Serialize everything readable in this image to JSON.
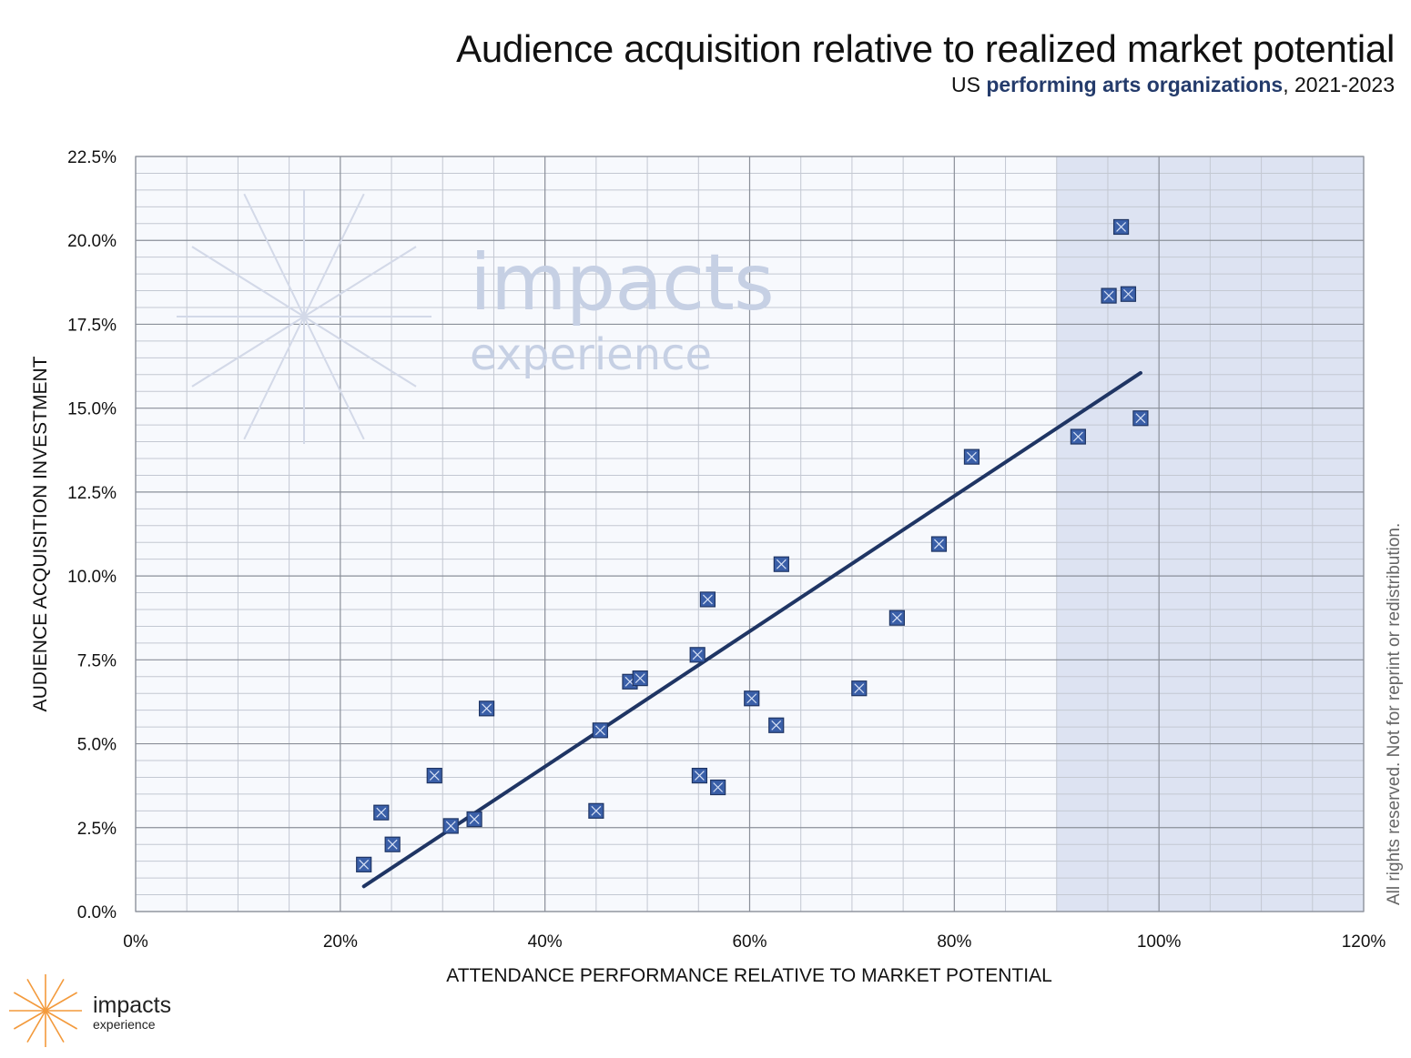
{
  "header": {
    "title": "Audience acquisition relative to realized market potential",
    "subtitle_prefix": "US ",
    "subtitle_highlight": "performing arts organizations",
    "subtitle_suffix": ", 2021-2023"
  },
  "side_note": "All rights reserved. Not for reprint or redistribution.",
  "watermark": {
    "line1": "impacts",
    "line2": "experience"
  },
  "logo": {
    "line1": "impacts",
    "line2": "experience"
  },
  "colors": {
    "marker_fill": "#3a5fa8",
    "trend_line": "#1f3564",
    "highlight_region": "#dde3f2",
    "plot_background": "#f7f9fd",
    "watermark": "#c6d0e4",
    "logo_star": "#f39a3c"
  },
  "chart_data": {
    "type": "scatter",
    "title": "Audience acquisition relative to realized market potential",
    "subtitle": "US performing arts organizations, 2021-2023",
    "xlabel": "ATTENDANCE PERFORMANCE RELATIVE TO MARKET POTENTIAL",
    "ylabel": "AUDIENCE ACQUISITION INVESTMENT",
    "xlim": [
      0,
      120
    ],
    "ylim": [
      0,
      22.5
    ],
    "x_ticks": [
      "0%",
      "20%",
      "40%",
      "60%",
      "80%",
      "100%",
      "120%"
    ],
    "x_tick_values": [
      0,
      20,
      40,
      60,
      80,
      100,
      120
    ],
    "y_ticks": [
      "0.0%",
      "2.5%",
      "5.0%",
      "7.5%",
      "10.0%",
      "12.5%",
      "15.0%",
      "17.5%",
      "20.0%",
      "22.5%"
    ],
    "y_tick_values": [
      0,
      2.5,
      5,
      7.5,
      10,
      12.5,
      15,
      17.5,
      20,
      22.5
    ],
    "grid": true,
    "highlight_region_x": [
      90,
      120
    ],
    "points": [
      {
        "x": 22.3,
        "y": 1.4
      },
      {
        "x": 24.0,
        "y": 2.95
      },
      {
        "x": 25.1,
        "y": 2.0
      },
      {
        "x": 29.2,
        "y": 4.05
      },
      {
        "x": 30.8,
        "y": 2.55
      },
      {
        "x": 33.1,
        "y": 2.75
      },
      {
        "x": 34.3,
        "y": 6.05
      },
      {
        "x": 45.0,
        "y": 3.0
      },
      {
        "x": 45.4,
        "y": 5.4
      },
      {
        "x": 48.3,
        "y": 6.85
      },
      {
        "x": 49.3,
        "y": 6.95
      },
      {
        "x": 54.9,
        "y": 7.65
      },
      {
        "x": 55.1,
        "y": 4.05
      },
      {
        "x": 55.9,
        "y": 9.3
      },
      {
        "x": 56.9,
        "y": 3.7
      },
      {
        "x": 60.2,
        "y": 6.35
      },
      {
        "x": 62.6,
        "y": 5.55
      },
      {
        "x": 63.1,
        "y": 10.35
      },
      {
        "x": 70.7,
        "y": 6.65
      },
      {
        "x": 74.4,
        "y": 8.75
      },
      {
        "x": 78.5,
        "y": 10.95
      },
      {
        "x": 81.7,
        "y": 13.55
      },
      {
        "x": 92.1,
        "y": 14.15
      },
      {
        "x": 95.1,
        "y": 18.35
      },
      {
        "x": 96.3,
        "y": 20.4
      },
      {
        "x": 97.0,
        "y": 18.4
      },
      {
        "x": 98.2,
        "y": 14.7
      }
    ],
    "trendline": {
      "x": [
        22.3,
        98.2
      ],
      "y": [
        0.75,
        16.05
      ]
    }
  }
}
